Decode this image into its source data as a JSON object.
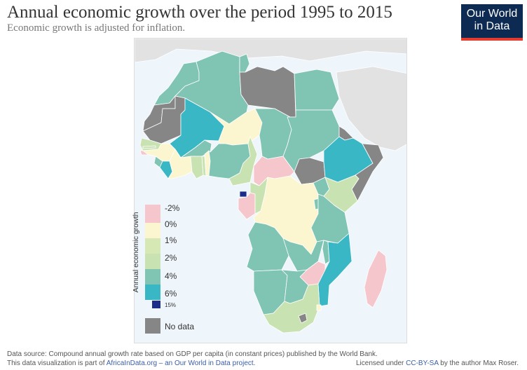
{
  "title": "Annual economic growth over the period 1995 to 2015",
  "subtitle": "Economic growth is adjusted for inflation.",
  "logo": {
    "line1": "Our World",
    "line2": "in Data"
  },
  "legend": {
    "axis_label": "Annual economic growth",
    "items": [
      {
        "label": "-2%",
        "color": "#f5c6cb"
      },
      {
        "label": "0%",
        "color": "#fbf6cf"
      },
      {
        "label": "1%",
        "color": "#d6e8b4"
      },
      {
        "label": "2%",
        "color": "#c9e2b2"
      },
      {
        "label": "4%",
        "color": "#80c4b4"
      },
      {
        "label": "6%",
        "color": "#3ab7c5"
      },
      {
        "label": "15%",
        "color": "#1c2d8a"
      }
    ],
    "no_data": {
      "label": "No data",
      "color": "#868686"
    }
  },
  "colors": {
    "ocean": "#eef5fb",
    "other_land": "#e2e2e2",
    "border": "#ffffff"
  },
  "footer": {
    "source": "Data source: Compound annual growth rate based on GDP per capita (in constant prices) published by the World Bank.",
    "project_prefix": "This data visualization is part of ",
    "project_link": "AfricaInData.org – an Our World in Data project",
    "project_suffix": ".",
    "license_prefix": "Licensed under ",
    "license_link": "CC-BY-SA",
    "license_suffix": " by the author Max Roser."
  }
}
